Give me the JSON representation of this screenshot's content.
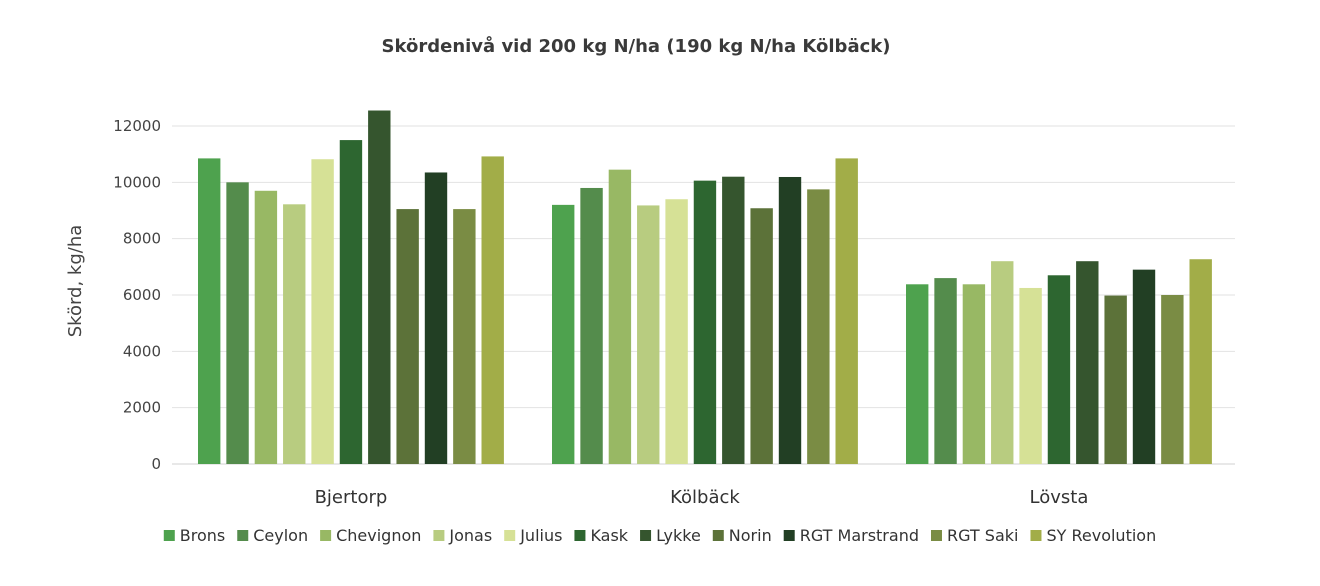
{
  "chart_data": {
    "type": "bar",
    "title": "Skördenivå vid 200 kg N/ha (190 kg N/ha Kölbäck)",
    "xlabel": "",
    "ylabel": "Skörd, kg/ha",
    "ylim": [
      0,
      13000
    ],
    "yticks": [
      0,
      2000,
      4000,
      6000,
      8000,
      10000,
      12000
    ],
    "yticks_labels": [
      "0",
      "2000",
      "4000",
      "6000",
      "8000",
      "10000",
      "12000"
    ],
    "grid": true,
    "legend_position": "bottom",
    "categories": [
      "Bjertorp",
      "Kölbäck",
      "Lövsta"
    ],
    "series": [
      {
        "name": "Brons",
        "color": "#4ea24e",
        "values": [
          10850,
          9200,
          6380
        ]
      },
      {
        "name": "Ceylon",
        "color": "#548c4c",
        "values": [
          10000,
          9800,
          6600
        ]
      },
      {
        "name": "Chevignon",
        "color": "#98b864",
        "values": [
          9700,
          10450,
          6380
        ]
      },
      {
        "name": "Jonas",
        "color": "#b8cc80",
        "values": [
          9220,
          9180,
          7200
        ]
      },
      {
        "name": "Julius",
        "color": "#d6e196",
        "values": [
          10820,
          9400,
          6250
        ]
      },
      {
        "name": "Kask",
        "color": "#2d6630",
        "values": [
          11500,
          10060,
          6700
        ]
      },
      {
        "name": "Lykke",
        "color": "#35552e",
        "values": [
          12550,
          10200,
          7200
        ]
      },
      {
        "name": "Norin",
        "color": "#5c7239",
        "values": [
          9050,
          9080,
          5980
        ]
      },
      {
        "name": "RGT Marstrand",
        "color": "#223f24",
        "values": [
          10350,
          10190,
          6900
        ]
      },
      {
        "name": "RGT Saki",
        "color": "#7a8c44",
        "values": [
          9050,
          9750,
          6000
        ]
      },
      {
        "name": "SY Revolution",
        "color": "#a2ad48",
        "values": [
          10920,
          10850,
          7270
        ]
      }
    ]
  }
}
